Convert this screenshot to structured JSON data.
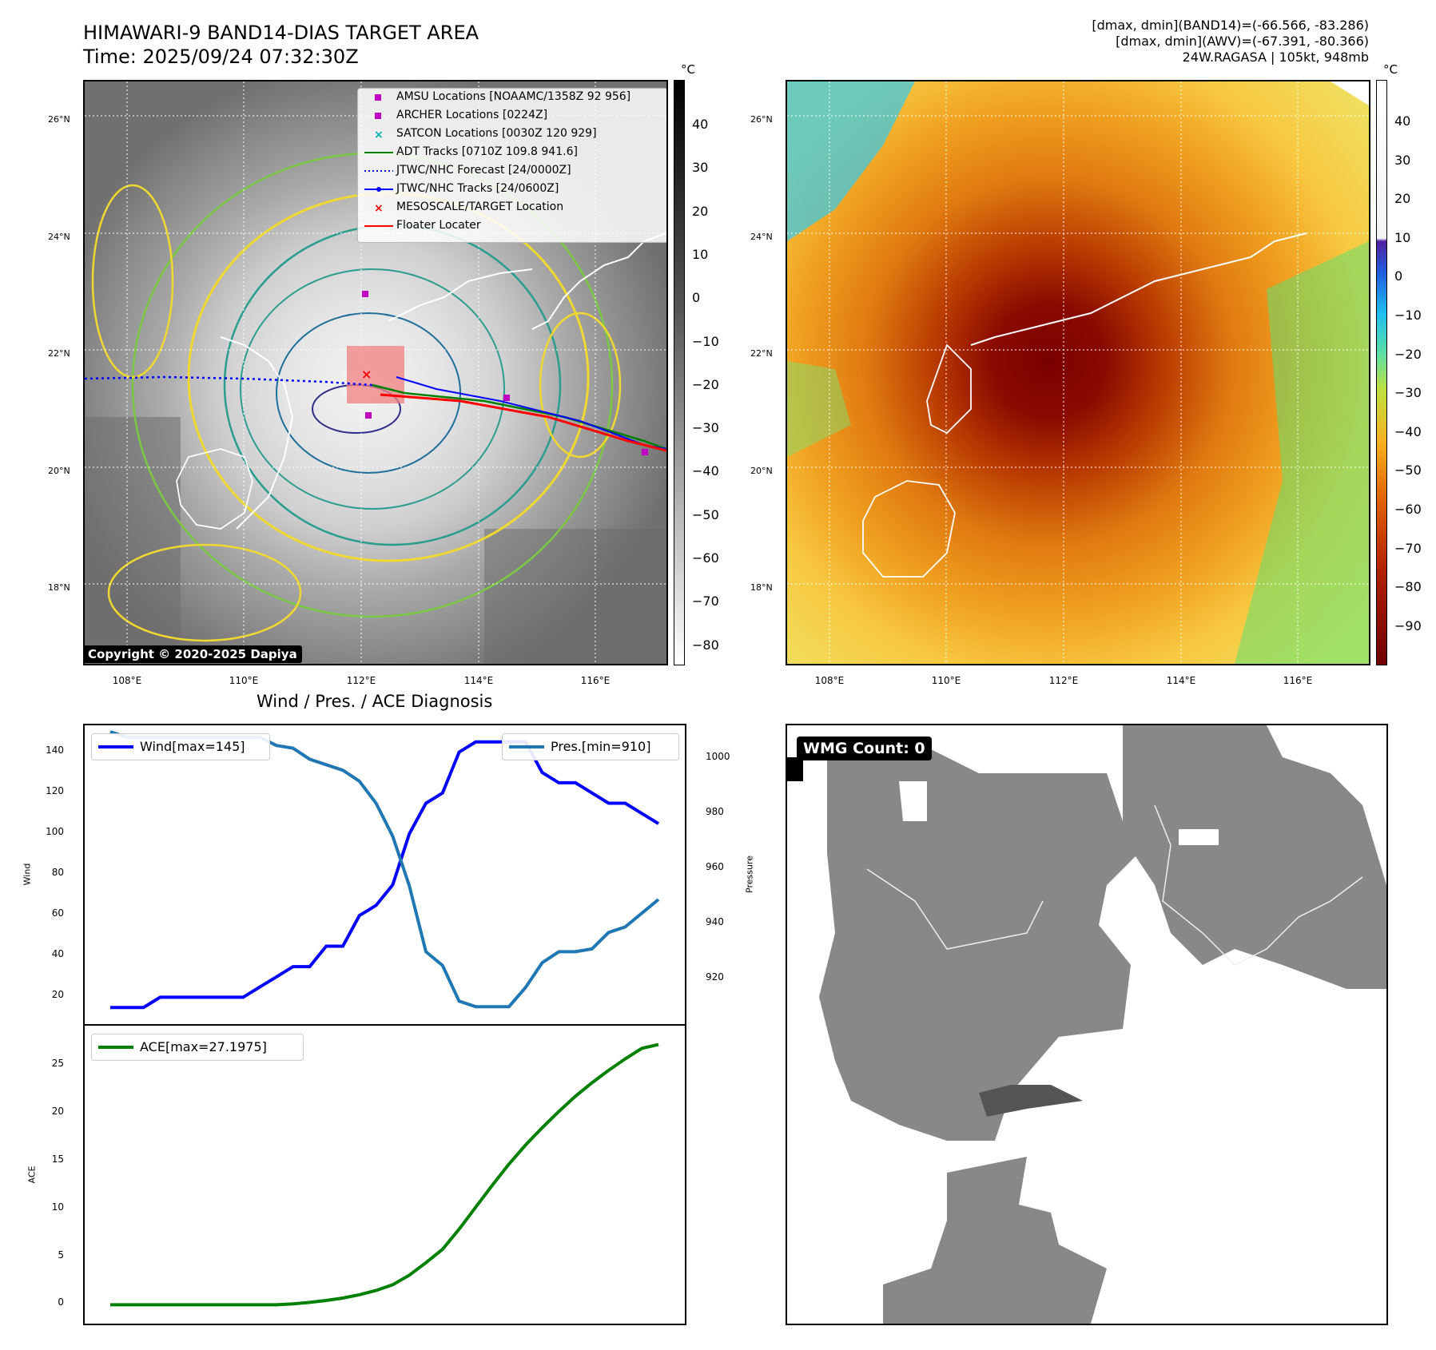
{
  "header": {
    "title_line1": "HIMAWARI-9 BAND14-DIAS TARGET AREA",
    "title_line2": "Time: 2025/09/24 07:32:30Z",
    "info_line1": "[dmax, dmin](BAND14)=(-66.566, -83.286)",
    "info_line2": "[dmax, dmin](AWV)=(-67.391, -80.366)",
    "info_line3": "24W.RAGASA | 105kt, 948mb"
  },
  "map_axes": {
    "lat_labels": [
      "26°N",
      "24°N",
      "22°N",
      "20°N",
      "18°N"
    ],
    "lon_labels": [
      "108°E",
      "110°E",
      "112°E",
      "114°E",
      "116°E"
    ]
  },
  "colorbar_left": {
    "unit": "°C",
    "ticks": [
      "40",
      "30",
      "20",
      "10",
      "0",
      "−10",
      "−20",
      "−30",
      "−40",
      "−50",
      "−60",
      "−70",
      "−80"
    ]
  },
  "colorbar_right": {
    "unit": "°C",
    "ticks": [
      "40",
      "30",
      "20",
      "10",
      "0",
      "−10",
      "−20",
      "−30",
      "−40",
      "−50",
      "−60",
      "−70",
      "−80",
      "−90"
    ]
  },
  "legend": [
    {
      "label": "AMSU Locations [NOAAMC/1358Z 92 956]",
      "marker": "square",
      "color": "#c000c0"
    },
    {
      "label": "ARCHER Locations [0224Z]",
      "marker": "square",
      "color": "#c000c0"
    },
    {
      "label": "SATCON Locations [0030Z 120 929]",
      "marker": "x",
      "color": "#00b0b0"
    },
    {
      "label": "ADT Tracks [0710Z 109.8 941.6]",
      "marker": "line",
      "color": "#008000"
    },
    {
      "label": "JTWC/NHC Forecast [24/0000Z]",
      "marker": "dotted",
      "color": "#0000ff"
    },
    {
      "label": "JTWC/NHC Tracks [24/0600Z]",
      "marker": "line-dot",
      "color": "#0000ff"
    },
    {
      "label": "MESOSCALE/TARGET Location",
      "marker": "x",
      "color": "#ff0000"
    },
    {
      "label": "Floater Locater",
      "marker": "line",
      "color": "#ff0000"
    }
  ],
  "copyright": "Copyright © 2020-2025 Dapiya",
  "wmg_label": "WMG Count: 0",
  "chart_data": [
    {
      "type": "line",
      "title": "Wind / Pres. / ACE Diagnosis",
      "ylabel": "Wind",
      "ylim": [
        10,
        150
      ],
      "yticks": [
        20,
        40,
        60,
        80,
        100,
        120,
        140
      ],
      "series": [
        {
          "name": "Wind[max=145]",
          "color": "#0000ff",
          "values": [
            15,
            15,
            15,
            20,
            20,
            20,
            20,
            20,
            20,
            25,
            30,
            35,
            35,
            45,
            45,
            60,
            65,
            75,
            100,
            115,
            120,
            140,
            145,
            145,
            145,
            145,
            130,
            125,
            125,
            120,
            115,
            115,
            110,
            105
          ]
        }
      ]
    },
    {
      "type": "line",
      "ylabel": "Pressure",
      "ylim": [
        906,
        1010
      ],
      "yticks": [
        920,
        940,
        960,
        980,
        1000
      ],
      "series": [
        {
          "name": "Pres.[min=910]",
          "color": "#1f77b4",
          "values": [
            1010,
            1008,
            1008,
            1008,
            1008,
            1008,
            1008,
            1008,
            1008,
            1008,
            1005,
            1004,
            1000,
            998,
            996,
            992,
            984,
            972,
            954,
            930,
            925,
            912,
            910,
            910,
            910,
            917,
            926,
            930,
            930,
            931,
            937,
            939,
            944,
            949
          ]
        }
      ]
    },
    {
      "type": "line",
      "ylabel": "ACE",
      "ylim": [
        -1.3,
        28.5
      ],
      "yticks": [
        0,
        5,
        10,
        15,
        20,
        25
      ],
      "series": [
        {
          "name": "ACE[max=27.1975]",
          "color": "#008000",
          "values": [
            0,
            0,
            0,
            0,
            0,
            0,
            0,
            0,
            0,
            0,
            0,
            0.1,
            0.25,
            0.45,
            0.7,
            1.05,
            1.5,
            2.1,
            3.1,
            4.4,
            5.8,
            7.9,
            10.2,
            12.5,
            14.7,
            16.7,
            18.5,
            20.2,
            21.8,
            23.2,
            24.5,
            25.7,
            26.8,
            27.2
          ]
        }
      ]
    }
  ]
}
